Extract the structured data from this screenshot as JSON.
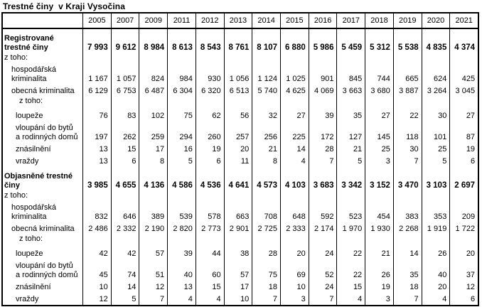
{
  "title": "Trestné činy  v Kraji Vysočina",
  "table": {
    "years": [
      "2005",
      "2007",
      "2009",
      "2011",
      "2012",
      "2013",
      "2014",
      "2015",
      "2016",
      "2017",
      "2018",
      "2019",
      "2020",
      "2021"
    ],
    "of_which_label": "z toho:",
    "rows": [
      {
        "name": "registered-crimes",
        "label": "Registrované trestné činy",
        "lines": [
          "Registrované",
          "trestné činy"
        ],
        "bold": true,
        "indent": 0,
        "values": [
          "7 993",
          "9 612",
          "8 984",
          "8 613",
          "8 543",
          "8 761",
          "8 107",
          "6 880",
          "5 986",
          "5 459",
          "5 312",
          "5 538",
          "4 835",
          "4 374"
        ]
      },
      {
        "name": "of-which-registered",
        "label": "z toho:",
        "lines": [
          "z toho:"
        ],
        "bold": false,
        "indent": 0,
        "values": []
      },
      {
        "name": "economic-crime-registered",
        "label": "hospodářská kriminalita",
        "lines": [
          "hospodářská",
          "kriminalita"
        ],
        "bold": false,
        "indent": 1,
        "values": [
          "1 167",
          "1 057",
          "824",
          "984",
          "930",
          "1 056",
          "1 124",
          "1 025",
          "901",
          "845",
          "744",
          "665",
          "624",
          "425"
        ]
      },
      {
        "name": "general-crime-registered",
        "label": "obecná kriminalita",
        "lines": [
          "obecná kriminalita"
        ],
        "bold": false,
        "indent": 1,
        "values": [
          "6 129",
          "6 753",
          "6 487",
          "6 304",
          "6 320",
          "6 513",
          "5 740",
          "4 625",
          "4 069",
          "3 663",
          "3 680",
          "3 887",
          "3 264",
          "3 045"
        ]
      },
      {
        "name": "of-which-general-registered",
        "label": "z toho:",
        "lines": [
          "z toho:"
        ],
        "bold": false,
        "indent": 2,
        "values": []
      },
      {
        "name": "robberies-registered",
        "label": "loupeže",
        "lines": [
          "loupeže"
        ],
        "bold": false,
        "indent": 2,
        "values": [
          "76",
          "83",
          "102",
          "75",
          "62",
          "56",
          "32",
          "27",
          "39",
          "35",
          "27",
          "22",
          "30",
          "27"
        ]
      },
      {
        "name": "burglaries-registered",
        "label": "vloupání do bytů a rodinných domů",
        "lines": [
          "vloupání do bytů",
          "a rodinných domů"
        ],
        "bold": false,
        "indent": 2,
        "values": [
          "197",
          "262",
          "259",
          "294",
          "260",
          "257",
          "256",
          "225",
          "172",
          "127",
          "145",
          "118",
          "101",
          "87"
        ]
      },
      {
        "name": "rapes-registered",
        "label": "znásilnění",
        "lines": [
          "znásilnění"
        ],
        "bold": false,
        "indent": 2,
        "values": [
          "13",
          "15",
          "17",
          "16",
          "19",
          "20",
          "21",
          "14",
          "28",
          "21",
          "25",
          "30",
          "25",
          "19"
        ]
      },
      {
        "name": "murders-registered",
        "label": "vraždy",
        "lines": [
          "vraždy"
        ],
        "bold": false,
        "indent": 2,
        "values": [
          "13",
          "6",
          "8",
          "5",
          "6",
          "11",
          "8",
          "4",
          "7",
          "5",
          "3",
          "7",
          "5",
          "6"
        ]
      },
      {
        "name": "solved-crimes",
        "label": "Objasněné trestné činy",
        "lines": [
          "Objasněné trestné",
          "činy"
        ],
        "bold": true,
        "indent": 0,
        "values": [
          "3 985",
          "4 655",
          "4 136",
          "4 586",
          "4 536",
          "4 641",
          "4 573",
          "4 103",
          "3 683",
          "3 342",
          "3 152",
          "3 470",
          "3 103",
          "2 697"
        ]
      },
      {
        "name": "of-which-solved",
        "label": "z toho:",
        "lines": [
          "z toho:"
        ],
        "bold": false,
        "indent": 0,
        "values": []
      },
      {
        "name": "economic-crime-solved",
        "label": "hospodářská kriminalita",
        "lines": [
          "hospodářská",
          "kriminalita"
        ],
        "bold": false,
        "indent": 1,
        "values": [
          "832",
          "646",
          "389",
          "539",
          "578",
          "663",
          "708",
          "648",
          "592",
          "523",
          "454",
          "383",
          "353",
          "209"
        ]
      },
      {
        "name": "general-crime-solved",
        "label": "obecná kriminalita",
        "lines": [
          "obecná kriminalita"
        ],
        "bold": false,
        "indent": 1,
        "values": [
          "2 486",
          "2 332",
          "2 190",
          "2 820",
          "2 773",
          "2 901",
          "2 725",
          "2 333",
          "2 174",
          "1 970",
          "1 930",
          "2 268",
          "1 919",
          "1 722"
        ]
      },
      {
        "name": "of-which-general-solved",
        "label": "z toho:",
        "lines": [
          "z toho:"
        ],
        "bold": false,
        "indent": 2,
        "values": []
      },
      {
        "name": "robberies-solved",
        "label": "loupeže",
        "lines": [
          "loupeže"
        ],
        "bold": false,
        "indent": 2,
        "values": [
          "42",
          "42",
          "57",
          "39",
          "44",
          "38",
          "28",
          "20",
          "24",
          "22",
          "21",
          "14",
          "26",
          "20"
        ]
      },
      {
        "name": "burglaries-solved",
        "label": "vloupání do bytů a rodinných domů",
        "lines": [
          "vloupání do bytů",
          "a rodinných domů"
        ],
        "bold": false,
        "indent": 2,
        "values": [
          "45",
          "74",
          "51",
          "40",
          "60",
          "57",
          "75",
          "69",
          "52",
          "22",
          "26",
          "35",
          "40",
          "37"
        ]
      },
      {
        "name": "rapes-solved",
        "label": "znásilnění",
        "lines": [
          "znásilnění"
        ],
        "bold": false,
        "indent": 2,
        "values": [
          "10",
          "14",
          "12",
          "13",
          "15",
          "17",
          "18",
          "10",
          "24",
          "15",
          "19",
          "18",
          "20",
          "12"
        ]
      },
      {
        "name": "murders-solved",
        "label": "vraždy",
        "lines": [
          "vraždy"
        ],
        "bold": false,
        "indent": 2,
        "values": [
          "12",
          "5",
          "7",
          "4",
          "4",
          "10",
          "7",
          "3",
          "7",
          "4",
          "3",
          "7",
          "4",
          "6"
        ]
      }
    ]
  }
}
